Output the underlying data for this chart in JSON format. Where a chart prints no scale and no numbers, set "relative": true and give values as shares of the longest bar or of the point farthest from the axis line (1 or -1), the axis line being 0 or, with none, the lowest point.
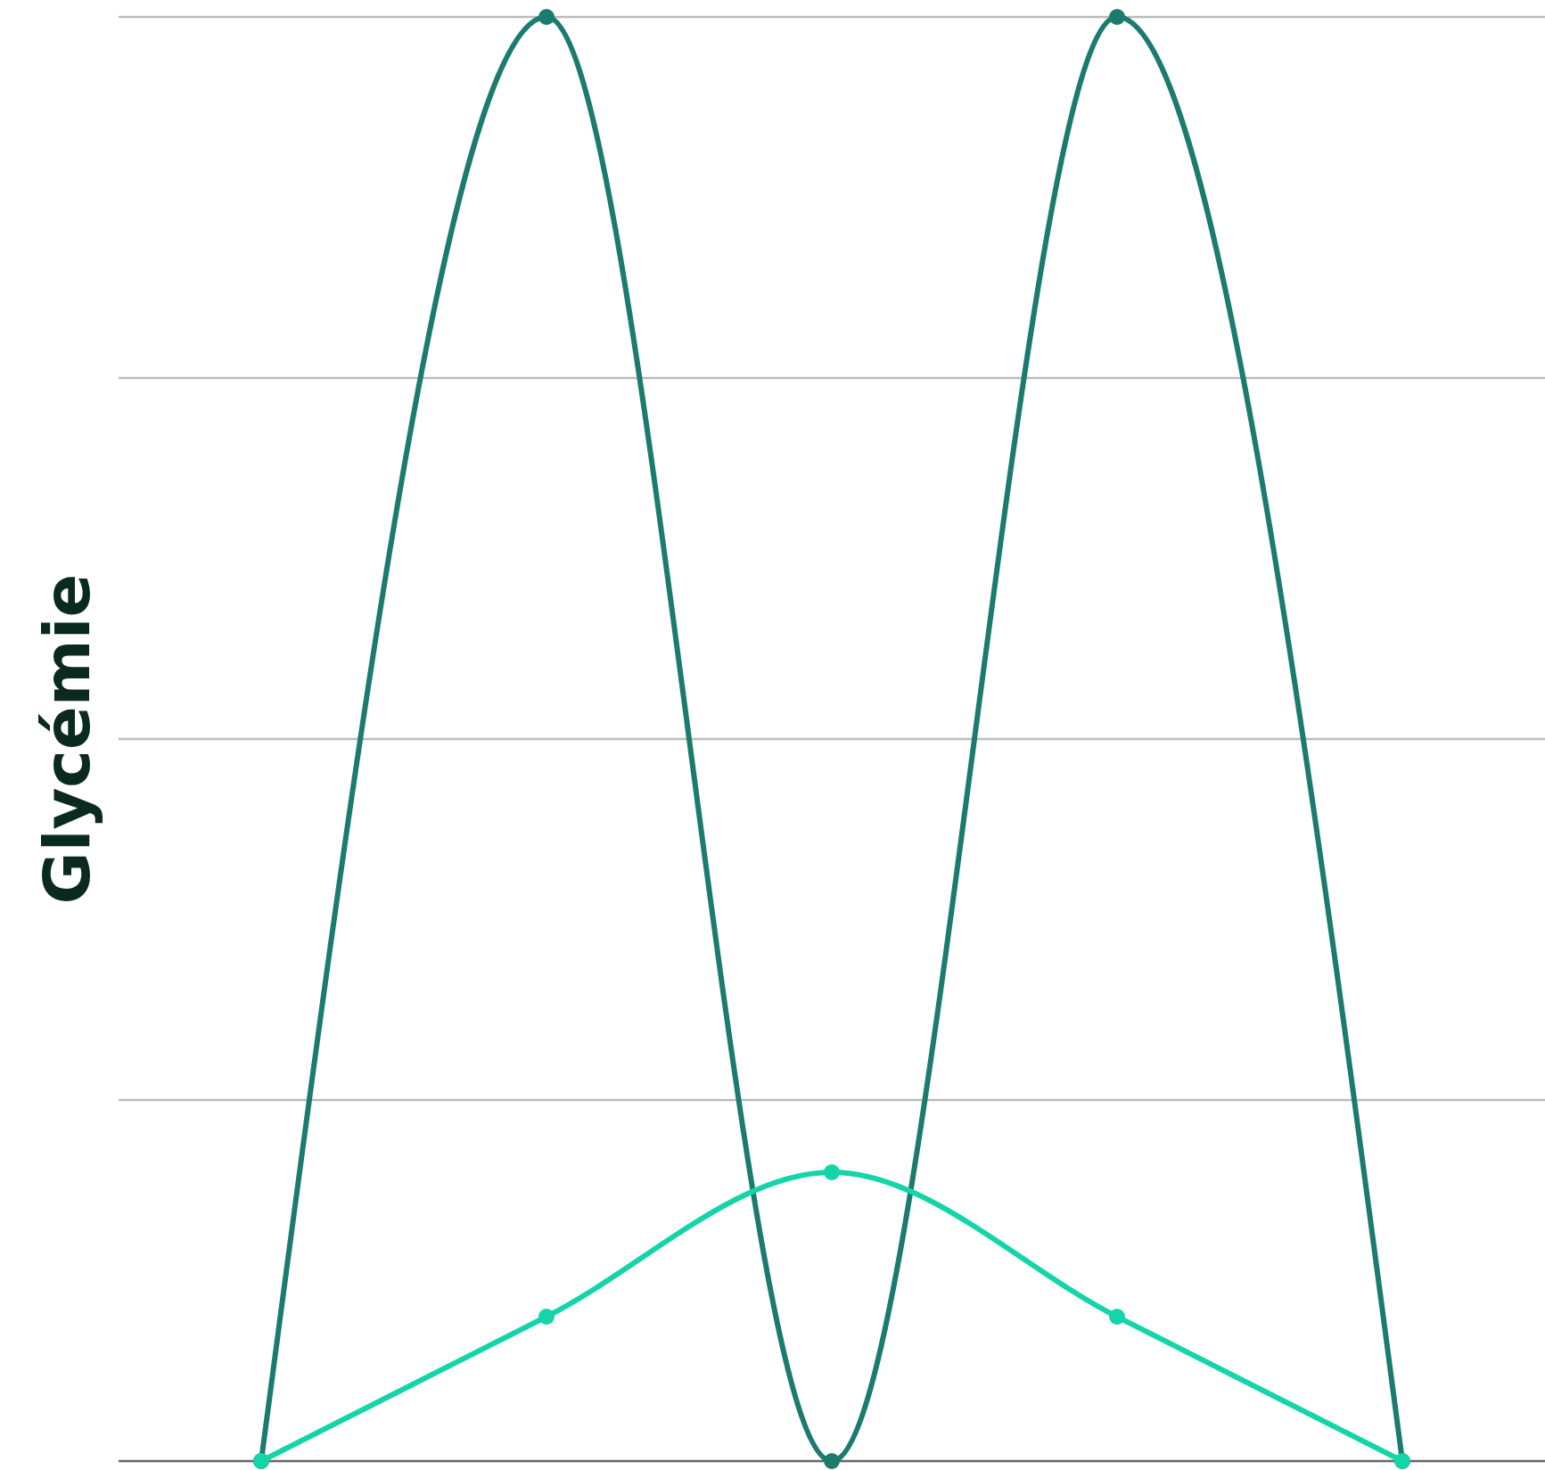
{
  "chart_data": {
    "type": "line",
    "ylabel": "Glycémie",
    "relative": true,
    "categories": [
      null,
      null,
      null,
      null,
      null
    ],
    "series": [
      {
        "color": "#1b7b6f",
        "values": [
          0,
          1,
          0,
          1,
          0
        ]
      },
      {
        "color": "#14d4a9",
        "values": [
          0,
          0.1,
          0.2,
          0.1,
          0
        ]
      }
    ],
    "grid": "y",
    "marker": "circle",
    "line_style": "solid"
  }
}
